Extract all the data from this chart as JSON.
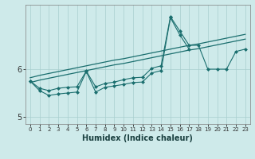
{
  "xlabel": "Humidex (Indice chaleur)",
  "ylabel": "",
  "bg_color": "#ceeaea",
  "line_color": "#1a6e6e",
  "grid_color": "#a8cece",
  "x_data": [
    0,
    1,
    2,
    3,
    4,
    5,
    6,
    7,
    8,
    9,
    10,
    11,
    12,
    13,
    14,
    15,
    16,
    17,
    18,
    19,
    20,
    21,
    22,
    23
  ],
  "line_smooth1": [
    5.82,
    5.87,
    5.91,
    5.95,
    5.99,
    6.03,
    6.07,
    6.11,
    6.15,
    6.19,
    6.22,
    6.26,
    6.3,
    6.34,
    6.38,
    6.42,
    6.46,
    6.5,
    6.53,
    6.57,
    6.61,
    6.65,
    6.69,
    6.73
  ],
  "line_smooth2": [
    5.72,
    5.77,
    5.81,
    5.85,
    5.89,
    5.93,
    5.97,
    6.01,
    6.05,
    6.09,
    6.12,
    6.16,
    6.2,
    6.24,
    6.28,
    6.32,
    6.36,
    6.4,
    6.43,
    6.47,
    6.51,
    6.55,
    6.59,
    6.63
  ],
  "line_jagged1_x": [
    0,
    1,
    2,
    3,
    4,
    5,
    6,
    7,
    8,
    9,
    10,
    11,
    12,
    13,
    14,
    15,
    16,
    17,
    18,
    19,
    20,
    21,
    22,
    23
  ],
  "line_jagged1_y": [
    5.75,
    5.6,
    5.55,
    5.6,
    5.62,
    5.63,
    5.96,
    5.63,
    5.7,
    5.73,
    5.78,
    5.82,
    5.83,
    6.02,
    6.07,
    7.1,
    6.8,
    6.5,
    6.5,
    6.0,
    6.0,
    6.0,
    6.37,
    6.42
  ],
  "line_jagged2_x": [
    0,
    1,
    2,
    3,
    4,
    5,
    6,
    7,
    8,
    9,
    10,
    11,
    12,
    13,
    14,
    15,
    16,
    17
  ],
  "line_jagged2_y": [
    5.75,
    5.55,
    5.45,
    5.48,
    5.5,
    5.52,
    5.95,
    5.52,
    5.62,
    5.65,
    5.68,
    5.72,
    5.73,
    5.92,
    5.97,
    7.08,
    6.72,
    6.42
  ],
  "xlim": [
    -0.5,
    23.5
  ],
  "ylim": [
    4.85,
    7.35
  ],
  "yticks": [
    5.0,
    6.0
  ],
  "xticks": [
    0,
    1,
    2,
    3,
    4,
    5,
    6,
    7,
    8,
    9,
    10,
    11,
    12,
    13,
    14,
    15,
    16,
    17,
    18,
    19,
    20,
    21,
    22,
    23
  ]
}
